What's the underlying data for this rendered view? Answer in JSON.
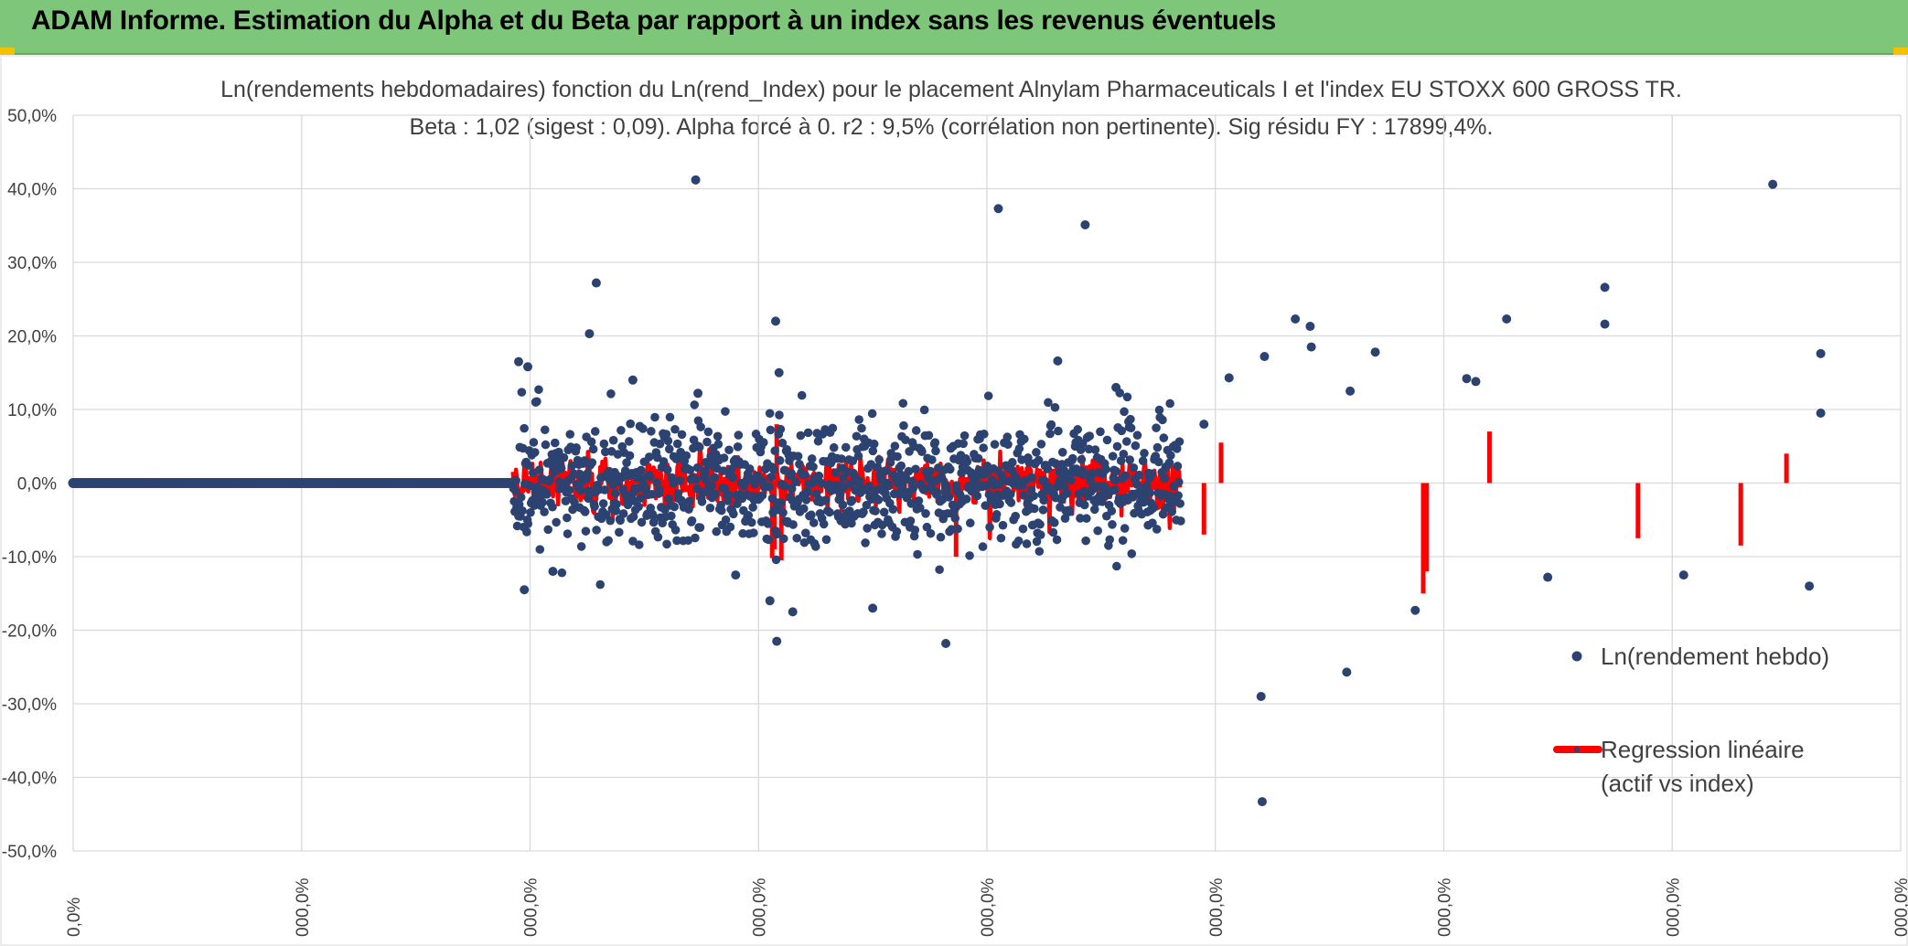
{
  "banner": {
    "title": "ADAM Informe. Estimation du Alpha et du Beta par rapport à un index sans les revenus éventuels"
  },
  "colors": {
    "banner": "#7dc67a",
    "points": "#2c4271",
    "regression": "#ff0000",
    "grid": "#d9d9d9",
    "text": "#404040"
  },
  "chart_data": {
    "type": "scatter",
    "title_line1": "Ln(rendements hebdomadaires) fonction du Ln(rend_Index) pour le placement Alnylam Pharmaceuticals I et l'index EU STOXX 600 GROSS TR.",
    "title_line2": "Beta : 1,02 (sigest : 0,09). Alpha forcé à 0. r2 : 9,5% (corrélation non pertinente). Sig résidu FY : 17899,4%.",
    "ylim": [
      -50,
      50
    ],
    "y_ticks": [
      "50,0%",
      "40,0%",
      "30,0%",
      "20,0%",
      "10,0%",
      "0,0%",
      "-10,0%",
      "-20,0%",
      "-30,0%",
      "-40,0%",
      "-50,0%"
    ],
    "x_ticks": [
      "0,0%",
      "000,0%",
      "000,0%",
      "000,0%",
      "000,0%",
      "000,0%",
      "000,0%",
      "000,0%",
      "000,0%"
    ],
    "x_tick_count": 9,
    "series": [
      {
        "name": "Ln(rendement hebdo)",
        "kind": "points",
        "zero_segment_end_index": 0.385,
        "noise_start_index": 0.385,
        "noise_end_index": 0.97,
        "sigma": 4.2,
        "outliers": [
          [
            0.39,
            16.5
          ],
          [
            0.395,
            -14.5
          ],
          [
            0.398,
            15.8
          ],
          [
            0.405,
            11.0
          ],
          [
            0.42,
            -12.0
          ],
          [
            0.452,
            20.3
          ],
          [
            0.458,
            27.2
          ],
          [
            0.49,
            14.0
          ],
          [
            0.545,
            41.2
          ],
          [
            0.547,
            12.2
          ],
          [
            0.58,
            -12.5
          ],
          [
            0.61,
            -16.0
          ],
          [
            0.615,
            22.0
          ],
          [
            0.616,
            -21.5
          ],
          [
            0.618,
            15.0
          ],
          [
            0.63,
            -17.5
          ],
          [
            0.7,
            -17.0
          ],
          [
            0.764,
            -21.8
          ],
          [
            0.81,
            37.3
          ],
          [
            0.862,
            16.6
          ],
          [
            0.886,
            35.1
          ],
          [
            0.913,
            13.0
          ],
          [
            0.99,
            8.0
          ],
          [
            1.012,
            14.3
          ],
          [
            1.04,
            -29.0
          ],
          [
            1.041,
            -43.3
          ],
          [
            1.043,
            17.2
          ],
          [
            1.07,
            22.3
          ],
          [
            1.083,
            21.3
          ],
          [
            1.084,
            18.5
          ],
          [
            1.115,
            -25.7
          ],
          [
            1.118,
            12.5
          ],
          [
            1.14,
            17.8
          ],
          [
            1.175,
            -17.3
          ],
          [
            1.228,
            13.8
          ],
          [
            1.22,
            14.2
          ],
          [
            1.255,
            22.3
          ],
          [
            1.291,
            -12.8
          ],
          [
            1.341,
            26.6
          ],
          [
            1.341,
            21.6
          ],
          [
            1.41,
            -12.5
          ],
          [
            1.488,
            40.6
          ],
          [
            1.52,
            -14.0
          ],
          [
            1.53,
            17.6
          ],
          [
            1.53,
            9.5
          ]
        ]
      },
      {
        "name": "Regression linéaire (actif vs index)",
        "kind": "line",
        "beta": 1.02,
        "spikes": [
          [
            0.612,
            -10.2
          ],
          [
            0.614,
            -9.0
          ],
          [
            0.616,
            8.0
          ],
          [
            0.62,
            -10.5
          ],
          [
            0.773,
            -10.0
          ],
          [
            0.99,
            -7.0
          ],
          [
            1.005,
            5.5
          ],
          [
            1.182,
            -15.0
          ],
          [
            1.185,
            -12.0
          ],
          [
            1.24,
            7.0
          ],
          [
            1.37,
            -7.5
          ],
          [
            1.46,
            -8.5
          ],
          [
            1.5,
            4.0
          ]
        ]
      }
    ],
    "legend": {
      "position": "bottom-right",
      "entries": [
        {
          "label_lines": [
            "Ln(rendement hebdo)"
          ]
        },
        {
          "label_lines": [
            "Regression linéaire",
            "(actif vs index)"
          ]
        }
      ]
    }
  }
}
